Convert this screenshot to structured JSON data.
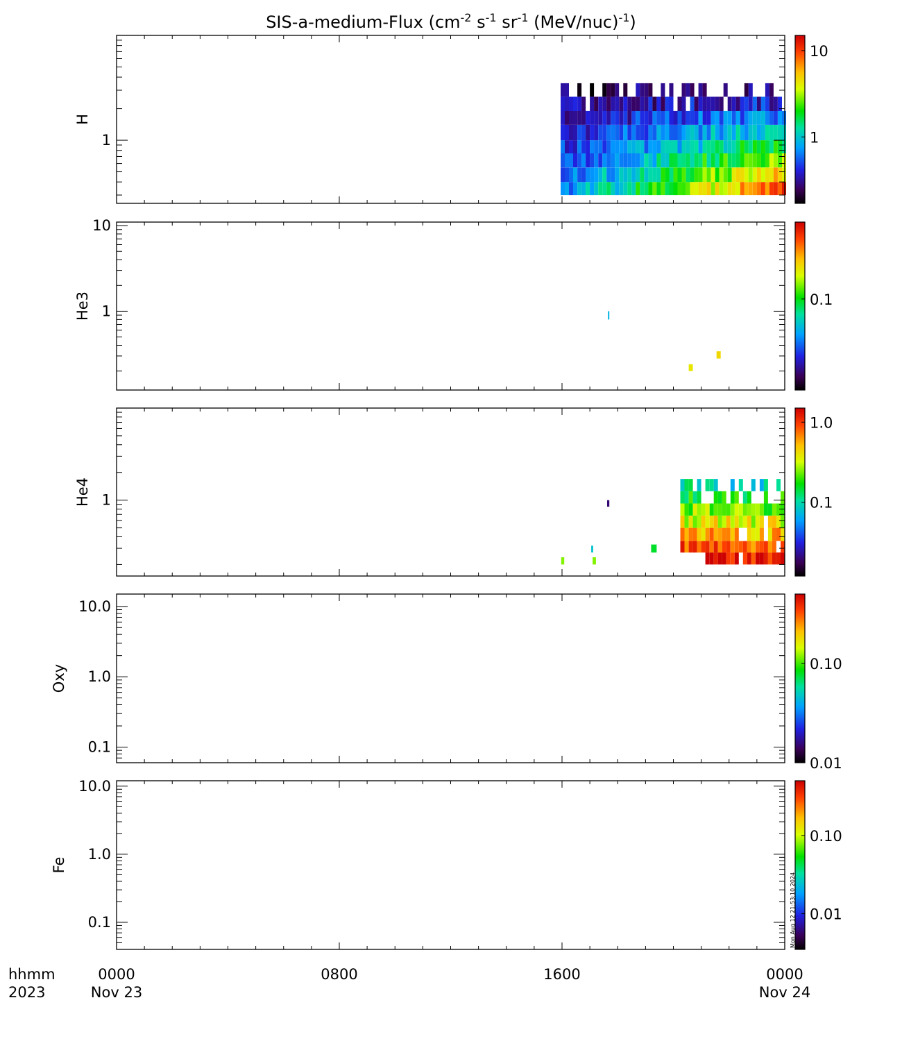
{
  "chart_data": {
    "type": "heatmap",
    "title": "SIS-a-medium-Flux (cm",
    "title_parts": [
      {
        "text": "SIS-a-medium-Flux (cm"
      },
      {
        "text": "-2",
        "sup": true
      },
      {
        "text": " s"
      },
      {
        "text": "-1",
        "sup": true
      },
      {
        "text": " sr"
      },
      {
        "text": "-1",
        "sup": true
      },
      {
        "text": " (MeV/nuc)"
      },
      {
        "text": "-1",
        "sup": true
      },
      {
        "text": ")"
      }
    ],
    "x_axis": {
      "min_hours": 0,
      "max_hours": 24,
      "ticks": [
        {
          "hour": 0,
          "label": "0000",
          "date": "Nov 23"
        },
        {
          "hour": 8,
          "label": "0800",
          "date": ""
        },
        {
          "hour": 16,
          "label": "1600",
          "date": ""
        },
        {
          "hour": 24,
          "label": "0000",
          "date": "Nov 24"
        }
      ],
      "row_labels": [
        "hhmm",
        "2023"
      ]
    },
    "colormap": "rainbow",
    "timestamp": "Mon Aug 12 21:53:10 2024",
    "panels": [
      {
        "name": "H",
        "yscale": "log",
        "ylim": [
          0.25,
          10
        ],
        "yticks": [
          {
            "v": 1,
            "label": "1"
          }
        ],
        "cb_scale": "log",
        "cb_range": [
          0.17,
          15
        ],
        "cb_ticks": [
          {
            "v": 1,
            "label": "1"
          },
          {
            "v": 10,
            "label": "10"
          }
        ],
        "energy_bins": [
          0.3,
          0.4,
          0.55,
          0.75,
          1.0,
          1.4,
          1.9,
          2.6,
          3.5
        ],
        "active_hours": [
          15.95,
          24.0
        ],
        "cells": "dense spectrogram; flux ~0.3 at top bins rising to ~8 at lowest bins"
      },
      {
        "name": "He3",
        "yscale": "log",
        "ylim": [
          0.12,
          11
        ],
        "yticks": [
          {
            "v": 1,
            "label": "1"
          },
          {
            "v": 10,
            "label": "10"
          }
        ],
        "cb_scale": "log",
        "cb_range": [
          0.012,
          0.6
        ],
        "cb_ticks": [
          {
            "v": 0.1,
            "label": "0.1"
          }
        ],
        "cells": [
          {
            "t0": 17.65,
            "t1": 17.7,
            "e0": 0.8,
            "e1": 1.0,
            "v": 0.05
          },
          {
            "t0": 20.55,
            "t1": 20.7,
            "e0": 0.2,
            "e1": 0.24,
            "v": 0.2
          },
          {
            "t0": 21.55,
            "t1": 21.7,
            "e0": 0.28,
            "e1": 0.34,
            "v": 0.22
          }
        ]
      },
      {
        "name": "He4",
        "yscale": "log",
        "ylim": [
          0.15,
          10
        ],
        "yticks": [
          {
            "v": 1,
            "label": "1"
          }
        ],
        "cb_scale": "log",
        "cb_range": [
          0.012,
          1.5
        ],
        "cb_ticks": [
          {
            "v": 0.1,
            "label": "0.1"
          },
          {
            "v": 1,
            "label": "1.0"
          }
        ],
        "energy_bins": [
          0.2,
          0.27,
          0.36,
          0.5,
          0.68,
          0.92,
          1.25,
          1.7,
          2.3
        ],
        "active_hours": [
          20.25,
          24.0
        ],
        "cells": "sparse spectrogram after 20:15; isolated bins at 16:00, 17:10, 17:20, 19:20, 22:20"
      },
      {
        "name": "Oxy",
        "yscale": "log",
        "ylim": [
          0.06,
          15
        ],
        "yticks": [
          {
            "v": 0.1,
            "label": "0.1"
          },
          {
            "v": 1,
            "label": "1.0"
          },
          {
            "v": 10,
            "label": "10.0"
          }
        ],
        "cb_scale": "log",
        "cb_range": [
          0.01,
          0.5
        ],
        "cb_ticks": [
          {
            "v": 0.01,
            "label": "0.01"
          },
          {
            "v": 0.1,
            "label": "0.10"
          }
        ],
        "cells": []
      },
      {
        "name": "Fe",
        "yscale": "log",
        "ylim": [
          0.04,
          12
        ],
        "yticks": [
          {
            "v": 0.1,
            "label": "0.1"
          },
          {
            "v": 1,
            "label": "1.0"
          },
          {
            "v": 10,
            "label": "10.0"
          }
        ],
        "cb_scale": "log",
        "cb_range": [
          0.0035,
          0.5
        ],
        "cb_ticks": [
          {
            "v": 0.01,
            "label": "0.01"
          },
          {
            "v": 0.1,
            "label": "0.10"
          }
        ],
        "cells": []
      }
    ]
  }
}
